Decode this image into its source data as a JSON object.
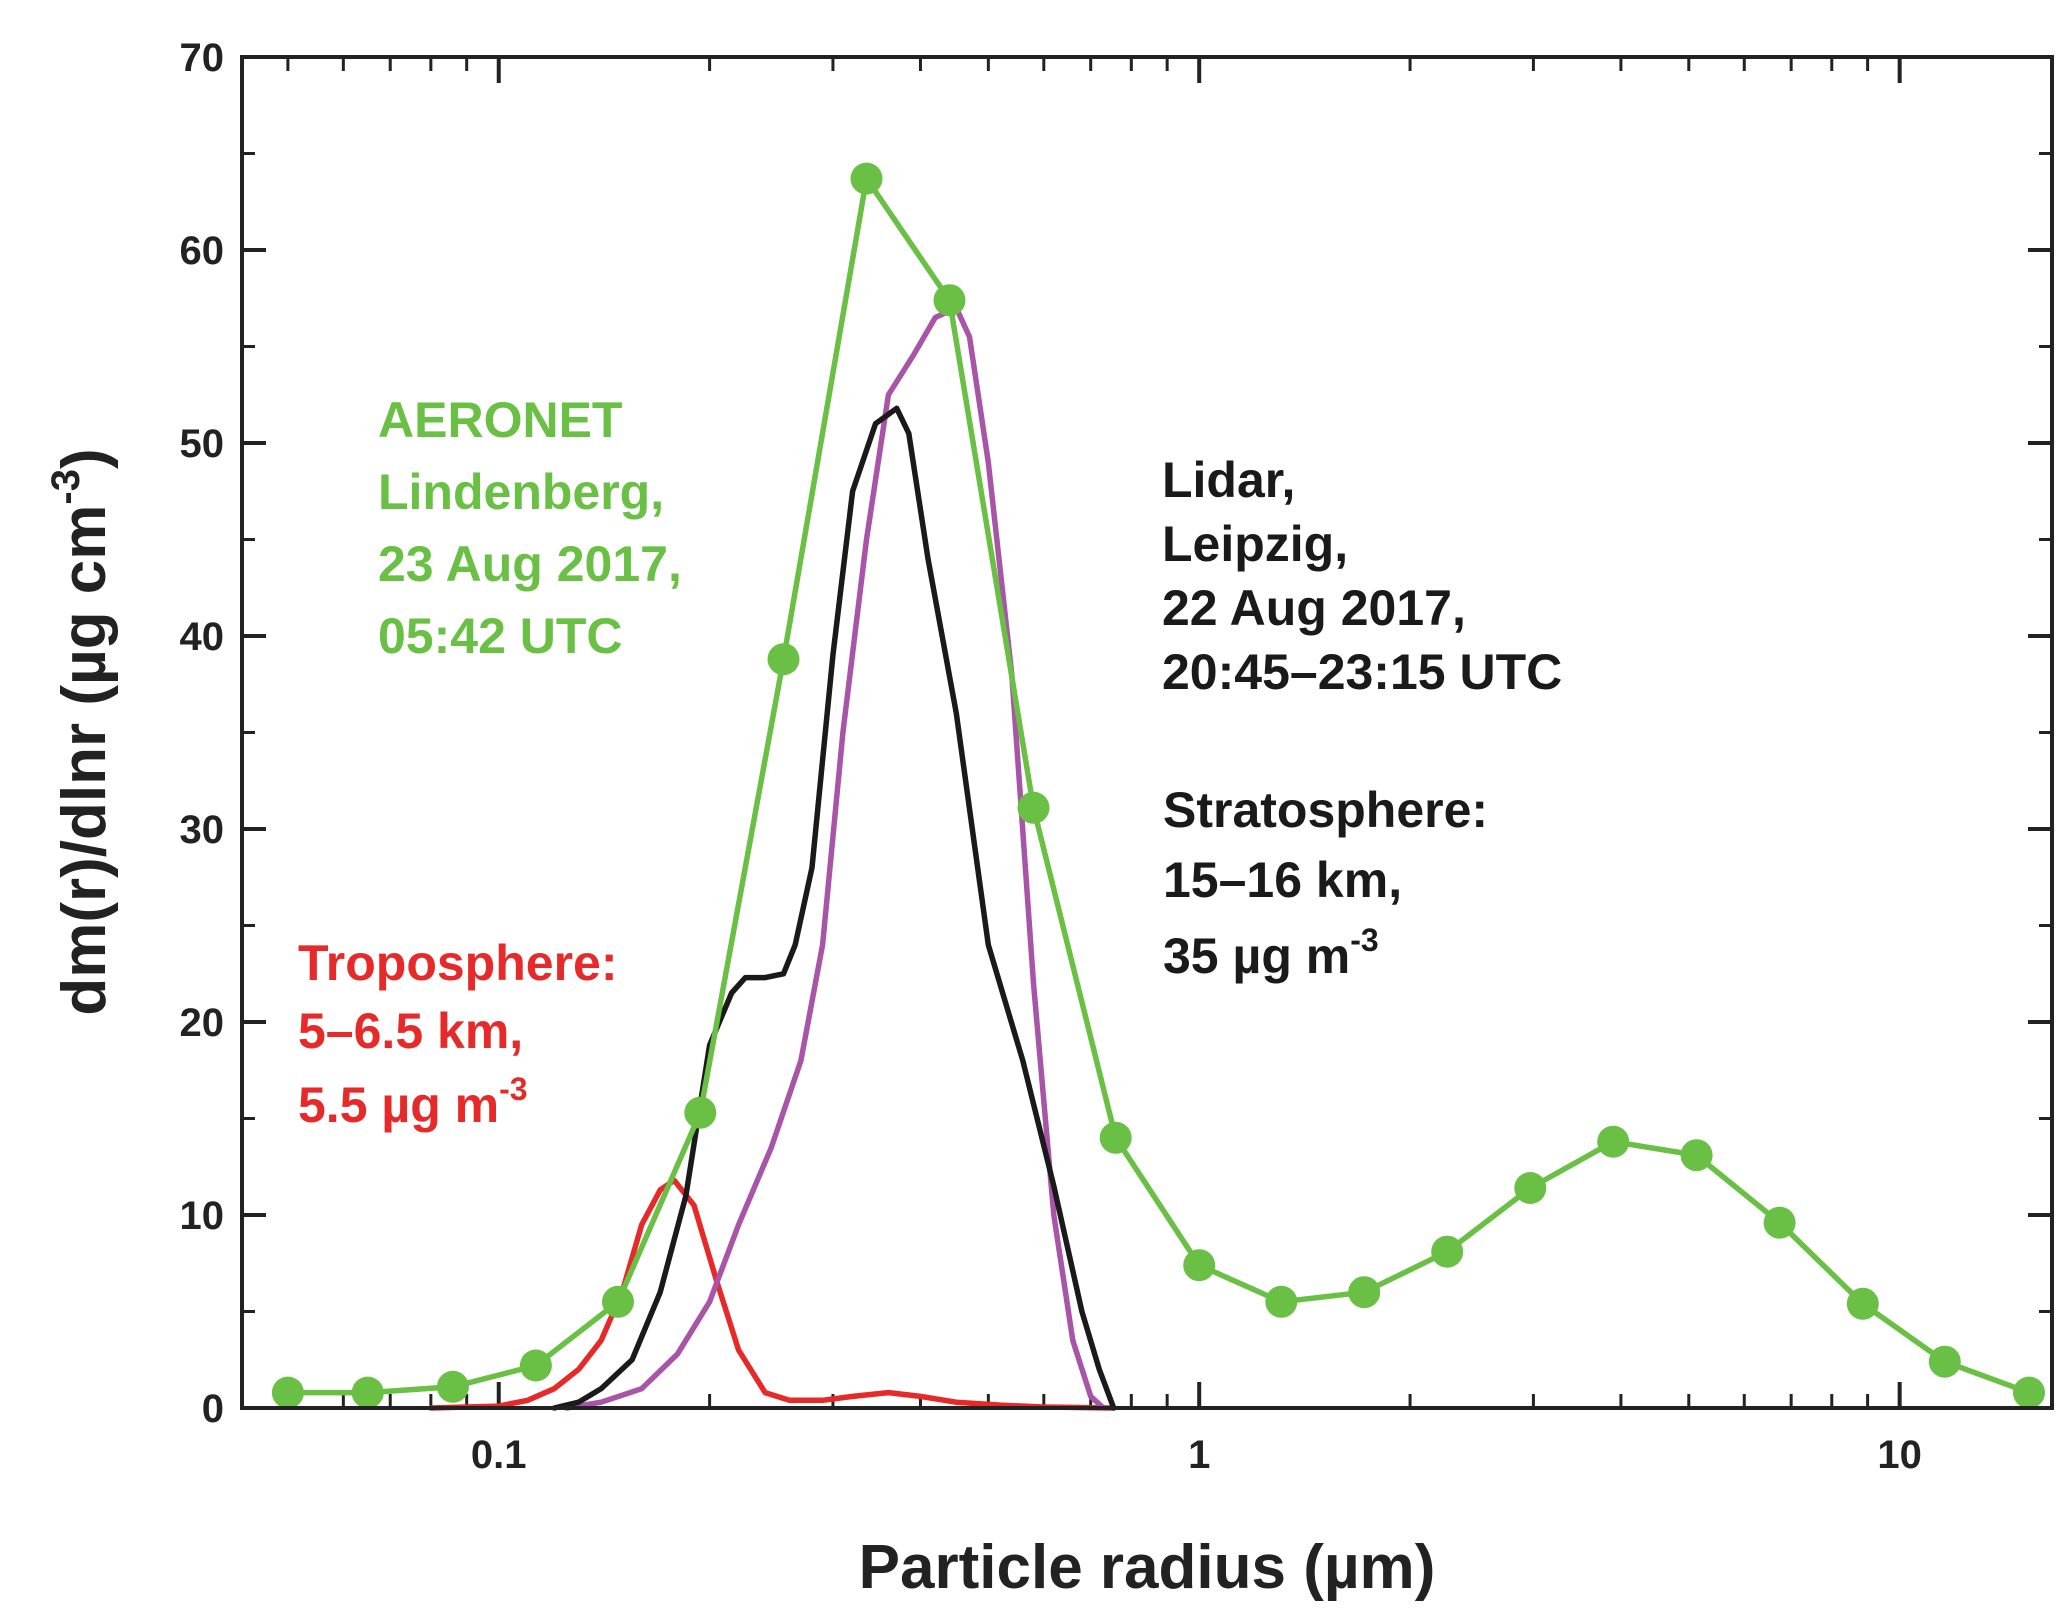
{
  "chart_data": {
    "type": "line",
    "xscale": "log",
    "xlim": [
      0.043,
      16.5
    ],
    "ylim": [
      0,
      70
    ],
    "grid": false,
    "legend": "none",
    "xlabel": "Particle radius (µm)",
    "ylabel": {
      "main": "dm(r)/dlnr (µg cm",
      "sup": "-3",
      "close": ")"
    },
    "xticks": [
      {
        "value": 0.1,
        "label": "0.1"
      },
      {
        "value": 1,
        "label": "1"
      },
      {
        "value": 10,
        "label": "10"
      }
    ],
    "yticks": [
      0,
      10,
      20,
      30,
      40,
      50,
      60,
      70
    ],
    "series": [
      {
        "key": "aeronet",
        "color": "#6abf45",
        "markers": true,
        "points": [
          [
            0.05,
            0.8
          ],
          [
            0.065,
            0.8
          ],
          [
            0.086,
            1.1
          ],
          [
            0.113,
            2.2
          ],
          [
            0.148,
            5.5
          ],
          [
            0.194,
            15.3
          ],
          [
            0.255,
            38.8
          ],
          [
            0.335,
            63.7
          ],
          [
            0.44,
            57.4
          ],
          [
            0.58,
            31.1
          ],
          [
            0.76,
            14.0
          ],
          [
            1.0,
            7.4
          ],
          [
            1.31,
            5.5
          ],
          [
            1.72,
            6.0
          ],
          [
            2.26,
            8.1
          ],
          [
            2.97,
            11.4
          ],
          [
            3.9,
            13.8
          ],
          [
            5.13,
            13.1
          ],
          [
            6.74,
            9.6
          ],
          [
            8.86,
            5.4
          ],
          [
            11.6,
            2.4
          ],
          [
            15.3,
            0.8
          ]
        ]
      },
      {
        "key": "stratosphere-black",
        "color": "#1a1a1a",
        "markers": false,
        "points": [
          [
            0.12,
            0.0
          ],
          [
            0.13,
            0.3
          ],
          [
            0.14,
            1.0
          ],
          [
            0.155,
            2.5
          ],
          [
            0.17,
            6.0
          ],
          [
            0.185,
            11.0
          ],
          [
            0.2,
            18.8
          ],
          [
            0.215,
            21.5
          ],
          [
            0.225,
            22.3
          ],
          [
            0.24,
            22.3
          ],
          [
            0.255,
            22.5
          ],
          [
            0.265,
            24.0
          ],
          [
            0.28,
            28.0
          ],
          [
            0.3,
            39.0
          ],
          [
            0.32,
            47.5
          ],
          [
            0.345,
            51.0
          ],
          [
            0.37,
            51.8
          ],
          [
            0.385,
            50.5
          ],
          [
            0.41,
            44.0
          ],
          [
            0.45,
            36.0
          ],
          [
            0.5,
            24.0
          ],
          [
            0.56,
            18.0
          ],
          [
            0.62,
            11.5
          ],
          [
            0.68,
            5.0
          ],
          [
            0.72,
            2.0
          ],
          [
            0.755,
            0.0
          ]
        ]
      },
      {
        "key": "stratosphere-magenta",
        "color": "#a855a8",
        "markers": false,
        "points": [
          [
            0.125,
            0.0
          ],
          [
            0.14,
            0.3
          ],
          [
            0.16,
            1.0
          ],
          [
            0.18,
            2.8
          ],
          [
            0.2,
            5.5
          ],
          [
            0.22,
            9.5
          ],
          [
            0.245,
            13.5
          ],
          [
            0.27,
            18.0
          ],
          [
            0.29,
            24.0
          ],
          [
            0.31,
            35.0
          ],
          [
            0.335,
            45.0
          ],
          [
            0.36,
            52.5
          ],
          [
            0.39,
            54.5
          ],
          [
            0.42,
            56.5
          ],
          [
            0.45,
            57.0
          ],
          [
            0.47,
            55.5
          ],
          [
            0.5,
            49.0
          ],
          [
            0.54,
            38.0
          ],
          [
            0.58,
            22.0
          ],
          [
            0.62,
            10.0
          ],
          [
            0.66,
            3.5
          ],
          [
            0.7,
            0.6
          ],
          [
            0.73,
            0.0
          ]
        ]
      },
      {
        "key": "troposphere",
        "color": "#e62a2a",
        "markers": false,
        "points": [
          [
            0.08,
            0.0
          ],
          [
            0.1,
            0.1
          ],
          [
            0.11,
            0.4
          ],
          [
            0.12,
            1.0
          ],
          [
            0.13,
            2.0
          ],
          [
            0.14,
            3.5
          ],
          [
            0.15,
            6.0
          ],
          [
            0.16,
            9.5
          ],
          [
            0.17,
            11.3
          ],
          [
            0.178,
            11.8
          ],
          [
            0.19,
            10.5
          ],
          [
            0.205,
            6.5
          ],
          [
            0.22,
            3.0
          ],
          [
            0.24,
            0.8
          ],
          [
            0.26,
            0.4
          ],
          [
            0.29,
            0.4
          ],
          [
            0.32,
            0.6
          ],
          [
            0.36,
            0.8
          ],
          [
            0.4,
            0.6
          ],
          [
            0.45,
            0.3
          ],
          [
            0.52,
            0.15
          ],
          [
            0.6,
            0.05
          ],
          [
            0.75,
            0.0
          ]
        ]
      }
    ],
    "annotations": {
      "aeronet": {
        "color": "#6abf45",
        "lines": [
          "AERONET",
          "Lindenberg,",
          "23 Aug 2017,",
          "05:42 UTC"
        ]
      },
      "lidar": {
        "color": "#1a1a1a",
        "lines": [
          "Lidar,",
          "Leipzig,",
          "22 Aug 2017,",
          "20:45–23:15 UTC"
        ]
      },
      "stratosphere": {
        "color": "#1a1a1a",
        "lines": [
          "Stratosphere:",
          "15–16 km,"
        ],
        "conc": {
          "base": "35 µg m",
          "sup": "-3"
        }
      },
      "troposphere": {
        "color": "#e62a2a",
        "lines": [
          "Troposphere:",
          "5–6.5 km,"
        ],
        "conc": {
          "base": "5.5 µg m",
          "sup": "-3"
        }
      }
    }
  }
}
